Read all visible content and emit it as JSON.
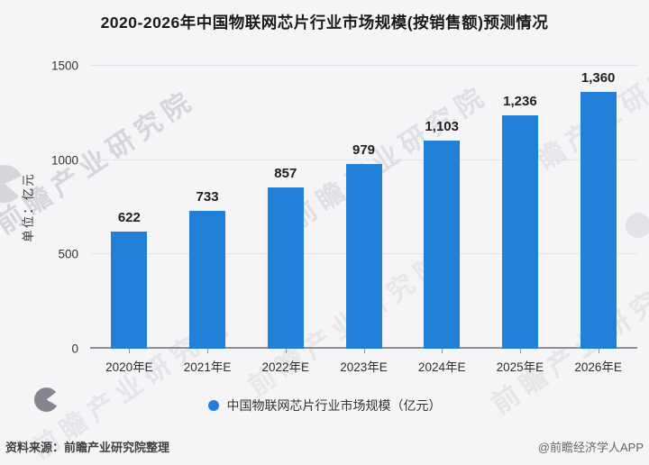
{
  "title": "2020-2026年中国物联网芯片行业市场规模(按销售额)预测情况",
  "chart_data": {
    "type": "bar",
    "title": "2020-2026年中国物联网芯片行业市场规模(按销售额)预测情况",
    "categories": [
      "2020年E",
      "2021年E",
      "2022年E",
      "2023年E",
      "2024年E",
      "2025年E",
      "2026年E"
    ],
    "values": [
      622,
      733,
      857,
      979,
      1103,
      1236,
      1360
    ],
    "value_labels": [
      "622",
      "733",
      "857",
      "979",
      "1,103",
      "1,236",
      "1,360"
    ],
    "xlabel": "",
    "ylabel": "单位：亿元",
    "ylim": [
      0,
      1500
    ],
    "yticks": [
      0,
      500,
      1000,
      1500
    ],
    "grid": true,
    "legend": "中国物联网芯片行业市场规模（亿元）",
    "legend_position": "bottom",
    "bar_color": "#2181d8"
  },
  "legend": {
    "label": "中国物联网芯片行业市场规模（亿元）"
  },
  "footer": {
    "source": "资料来源：前瞻产业研究院整理",
    "credit": "@前瞻经济学人APP"
  },
  "watermark": {
    "text": "前瞻产业研究院"
  },
  "colors": {
    "bar": "#2181d8",
    "background": "#f5f5f7",
    "grid": "#e2e2e7",
    "axis": "#8f8f96",
    "title": "#1a1a1a",
    "value_label": "#1f1f1f",
    "tick_label": "#333333",
    "footer_source": "#3f3f3f",
    "footer_credit": "#666666"
  }
}
